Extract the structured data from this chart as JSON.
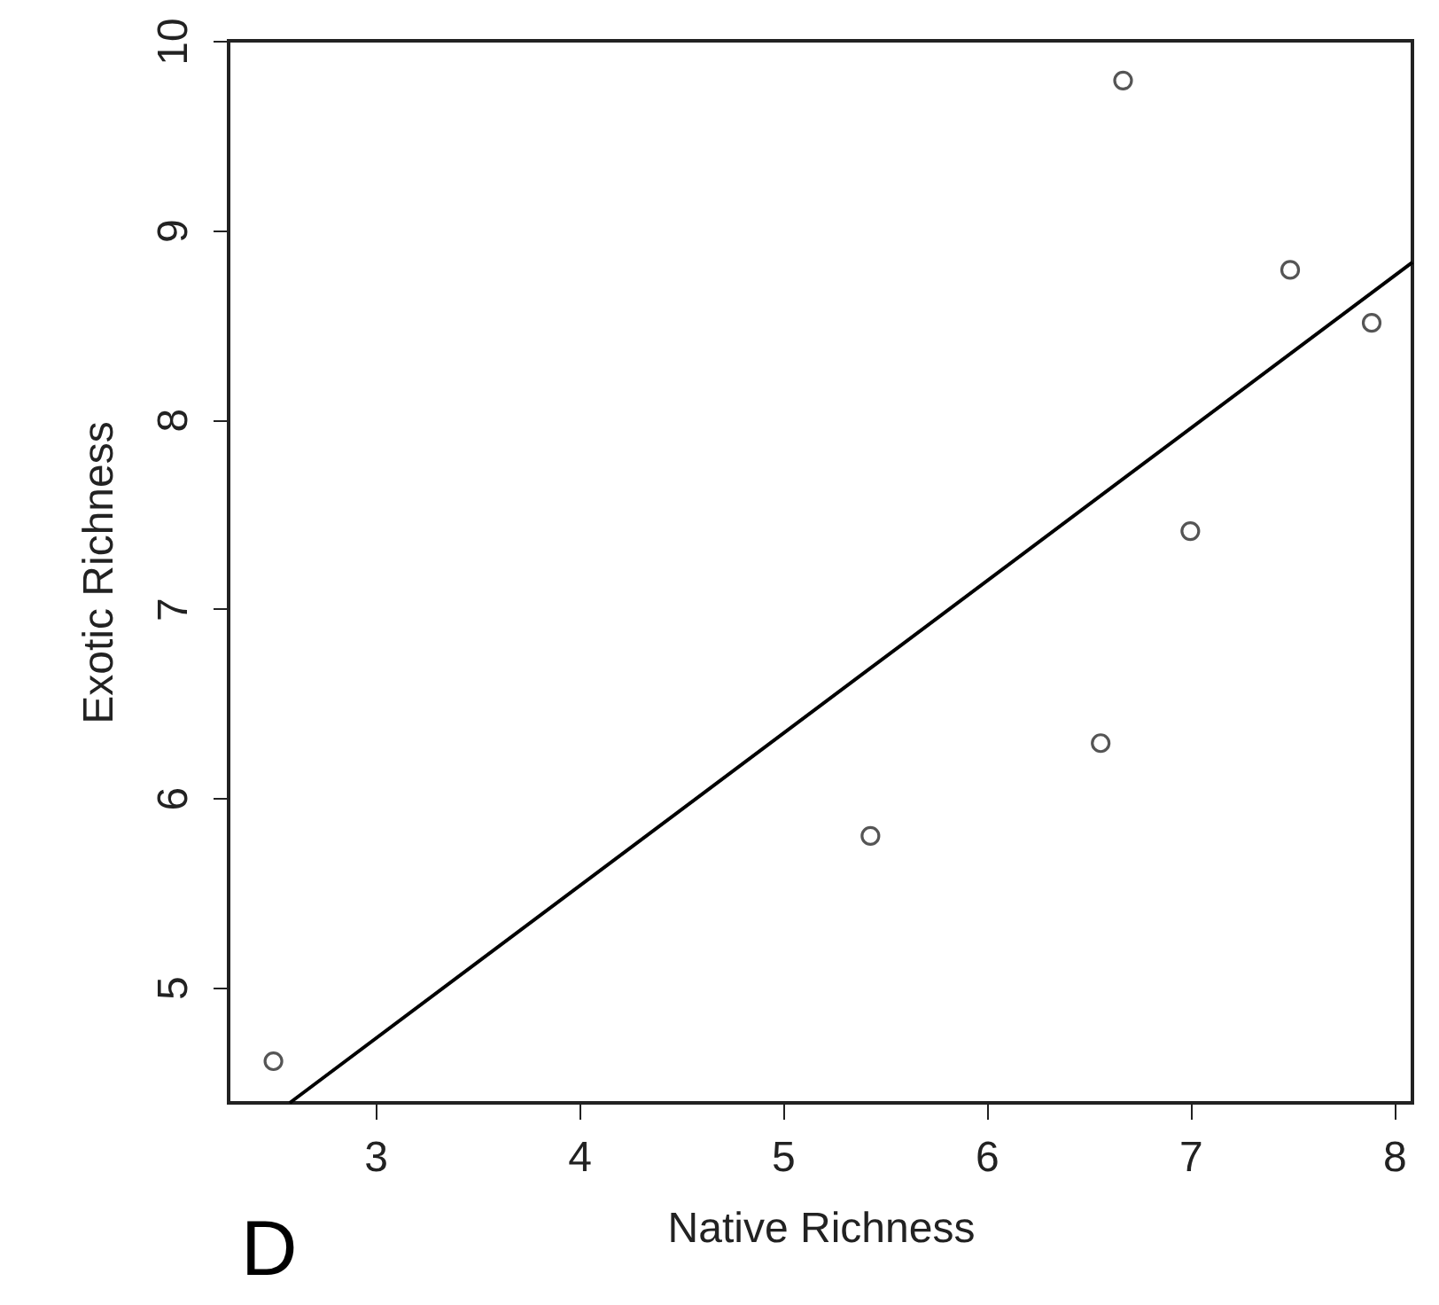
{
  "chart_data": {
    "type": "scatter",
    "xlabel": "Native Richness",
    "ylabel": "Exotic Richness",
    "xlim": [
      2.28,
      8.09
    ],
    "ylim": [
      4.39,
      10.0
    ],
    "xticks": [
      3,
      4,
      5,
      6,
      7,
      8
    ],
    "yticks": [
      5,
      6,
      7,
      8,
      9,
      10
    ],
    "grid": false,
    "annotations": [
      "D"
    ],
    "series": [
      {
        "marker": "circle",
        "color": "#555555",
        "x": [
          2.5,
          5.43,
          6.56,
          6.67,
          7.0,
          7.49,
          7.89
        ],
        "values": [
          4.61,
          5.8,
          6.29,
          9.79,
          7.41,
          8.79,
          8.51
        ]
      },
      {
        "type": "line",
        "color": "#000000",
        "x": [
          2.58,
          8.09
        ],
        "values": [
          4.39,
          8.83
        ]
      }
    ]
  }
}
